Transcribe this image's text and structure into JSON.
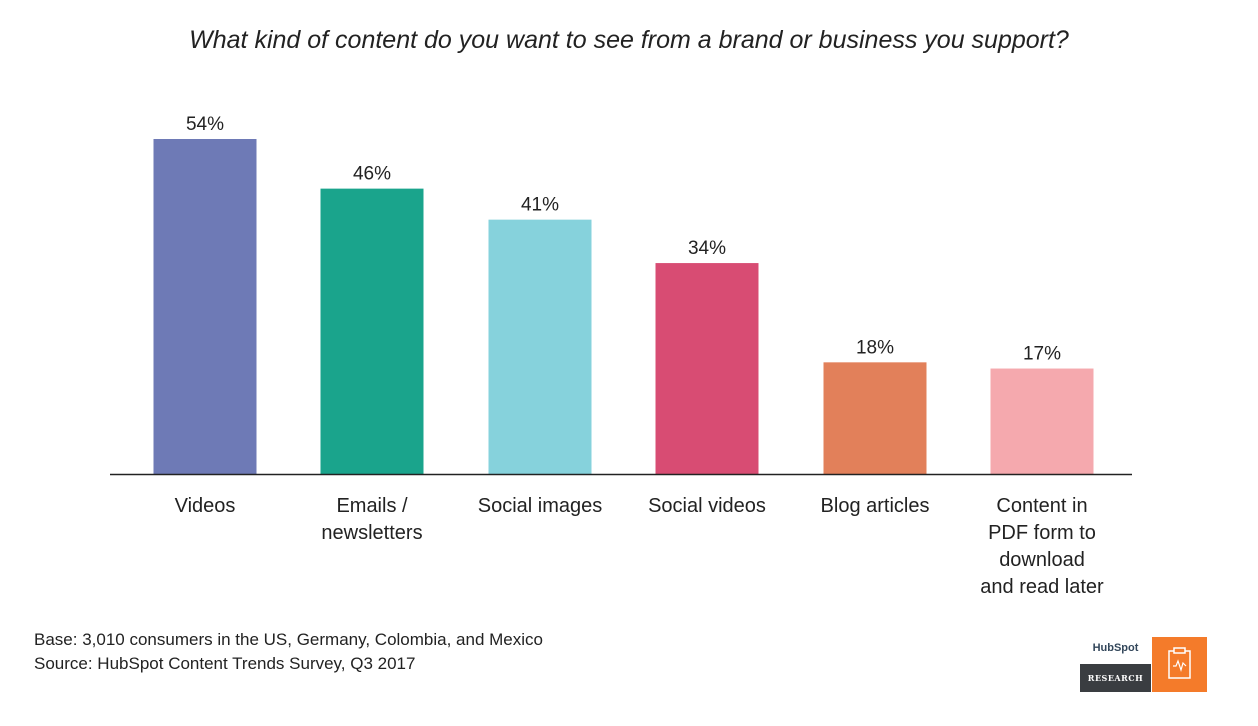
{
  "chart_data": {
    "type": "bar",
    "title": "What kind of content do you want to see from a brand or business you support?",
    "categories": [
      [
        "Videos"
      ],
      [
        "Emails /",
        "newsletters"
      ],
      [
        "Social images"
      ],
      [
        "Social videos"
      ],
      [
        "Blog articles"
      ],
      [
        "Content in",
        "PDF form to",
        "download",
        "and read later"
      ]
    ],
    "values": [
      54,
      46,
      41,
      34,
      18,
      17
    ],
    "data_labels": [
      "54%",
      "46%",
      "41%",
      "34%",
      "18%",
      "17%"
    ],
    "colors": [
      "#6e7ab6",
      "#1aa48c",
      "#86d2dc",
      "#d84c73",
      "#e2805a",
      "#f5a9ae"
    ],
    "ylim": [
      0,
      54
    ],
    "grid": false,
    "xlabel": "",
    "ylabel": ""
  },
  "notes": {
    "base": "Base: 3,010 consumers in the US, Germany, Colombia, and Mexico",
    "source": "Source: HubSpot Content Trends Survey, Q3 2017"
  },
  "logo": {
    "brand": "HubSpot",
    "label": "RESEARCH"
  }
}
